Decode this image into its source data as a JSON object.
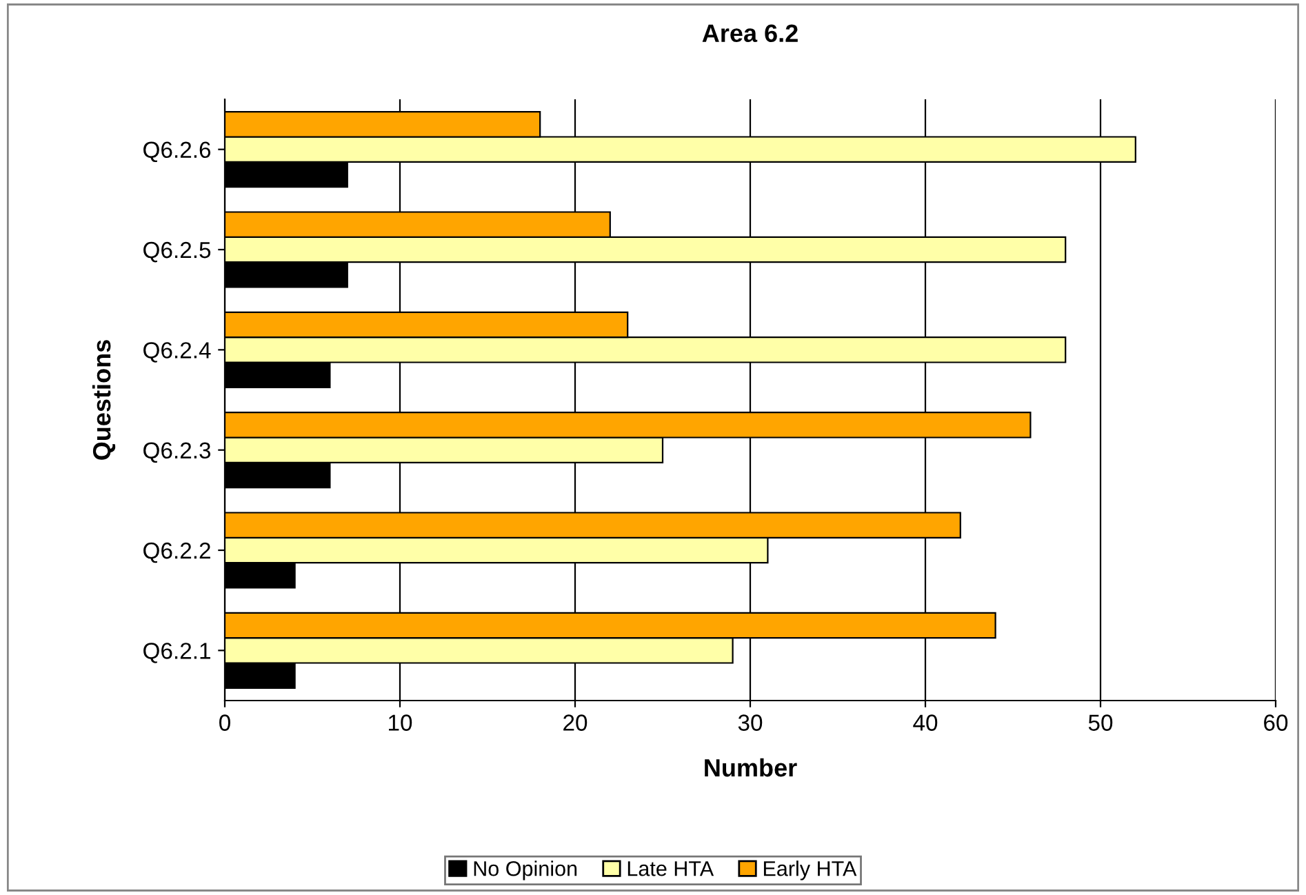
{
  "chart_data": {
    "type": "bar",
    "orientation": "horizontal",
    "title": "Area 6.2",
    "xlabel": "Number",
    "ylabel": "Questions",
    "categories": [
      "Q6.2.6",
      "Q6.2.5",
      "Q6.2.4",
      "Q6.2.3",
      "Q6.2.2",
      "Q6.2.1"
    ],
    "series": [
      {
        "name": "No Opinion",
        "color": "#000000",
        "values": [
          7,
          7,
          6,
          6,
          4,
          4
        ]
      },
      {
        "name": "Late HTA",
        "color": "#ffffa8",
        "values": [
          52,
          48,
          48,
          25,
          31,
          29
        ]
      },
      {
        "name": "Early HTA",
        "color": "#ffa500",
        "values": [
          18,
          22,
          23,
          46,
          42,
          44
        ]
      }
    ],
    "xlim": [
      0,
      60
    ],
    "xticks": [
      0,
      10,
      20,
      30,
      40,
      50,
      60
    ],
    "grid": "x",
    "legend": "bottom"
  }
}
